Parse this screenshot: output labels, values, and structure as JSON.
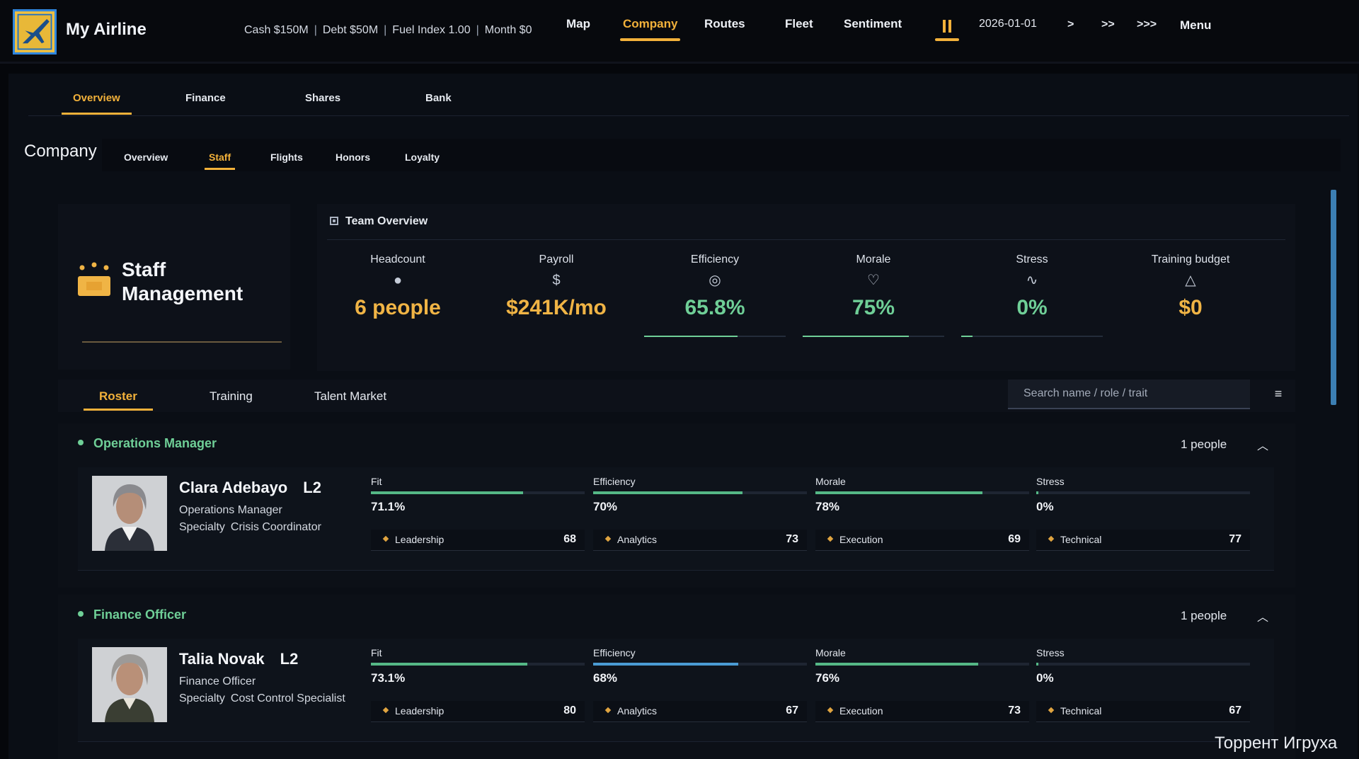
{
  "app": {
    "title": "My Airline"
  },
  "status": {
    "cash": "Cash $150M",
    "debt": "Debt $50M",
    "fuel": "Fuel Index 1.00",
    "month": "Month $0"
  },
  "nav": {
    "items": [
      "Map",
      "Company",
      "Routes",
      "Fleet",
      "Sentiment"
    ],
    "active": "Company",
    "date": "2026-01-01",
    "speeds": [
      ">",
      ">>",
      ">>>"
    ],
    "menu": "Menu"
  },
  "main_tabs": {
    "items": [
      "Overview",
      "Finance",
      "Shares",
      "Bank"
    ],
    "active": "Overview"
  },
  "company": {
    "title": "Company",
    "sub_tabs": [
      "Overview",
      "Staff",
      "Flights",
      "Honors",
      "Loyalty"
    ],
    "active": "Staff"
  },
  "staff_card": {
    "title_line1": "Staff",
    "title_line2": "Management"
  },
  "team_overview": {
    "title": "Team Overview",
    "metrics": [
      {
        "label": "Headcount",
        "icon": "dot-icon",
        "value": "6 people",
        "color": "#f0b445"
      },
      {
        "label": "Payroll",
        "icon": "dollar-icon",
        "value": "$241K/mo",
        "color": "#f0b445"
      },
      {
        "label": "Efficiency",
        "icon": "target-icon",
        "value": "65.8%",
        "color": "#6fcf97",
        "level": 0.658
      },
      {
        "label": "Morale",
        "icon": "heart-icon",
        "value": "75%",
        "color": "#6fcf97",
        "level": 0.75
      },
      {
        "label": "Stress",
        "icon": "wave-icon",
        "value": "0%",
        "color": "#6fcf97",
        "level": 0.0
      },
      {
        "label": "Training budget",
        "icon": "triangle-icon",
        "value": "$0",
        "color": "#f0b445"
      }
    ]
  },
  "roster": {
    "tabs": [
      "Roster",
      "Training",
      "Talent Market"
    ],
    "active": "Roster",
    "search_placeholder": "Search name / role / trait",
    "filter_icon": "filter-icon"
  },
  "groups": [
    {
      "role": "Operations Manager",
      "count": "1 people",
      "employee": {
        "name": "Clara Adebayo",
        "level": "L2",
        "role": "Operations Manager",
        "specialty_label": "Specialty",
        "specialty": "Crisis Coordinator",
        "stats": [
          {
            "label": "Fit",
            "value": "71.1%",
            "level": 0.711,
            "color": "#55b886"
          },
          {
            "label": "Efficiency",
            "value": "70%",
            "level": 0.7,
            "color": "#55b886"
          },
          {
            "label": "Morale",
            "value": "78%",
            "level": 0.78,
            "color": "#55b886"
          },
          {
            "label": "Stress",
            "value": "0%",
            "level": 0.0,
            "color": "#55b886"
          }
        ],
        "skills": [
          {
            "name": "Leadership",
            "value": "68"
          },
          {
            "name": "Analytics",
            "value": "73"
          },
          {
            "name": "Execution",
            "value": "69"
          },
          {
            "name": "Technical",
            "value": "77"
          }
        ]
      }
    },
    {
      "role": "Finance Officer",
      "count": "1 people",
      "employee": {
        "name": "Talia Novak",
        "level": "L2",
        "role": "Finance Officer",
        "specialty_label": "Specialty",
        "specialty": "Cost Control Specialist",
        "stats": [
          {
            "label": "Fit",
            "value": "73.1%",
            "level": 0.731,
            "color": "#55b886"
          },
          {
            "label": "Efficiency",
            "value": "68%",
            "level": 0.68,
            "color": "#4a9bd4"
          },
          {
            "label": "Morale",
            "value": "76%",
            "level": 0.76,
            "color": "#55b886"
          },
          {
            "label": "Stress",
            "value": "0%",
            "level": 0.0,
            "color": "#55b886"
          }
        ],
        "skills": [
          {
            "name": "Leadership",
            "value": "80"
          },
          {
            "name": "Analytics",
            "value": "67"
          },
          {
            "name": "Execution",
            "value": "73"
          },
          {
            "name": "Technical",
            "value": "67"
          }
        ]
      }
    }
  ],
  "watermark": "Торрент Игруха"
}
